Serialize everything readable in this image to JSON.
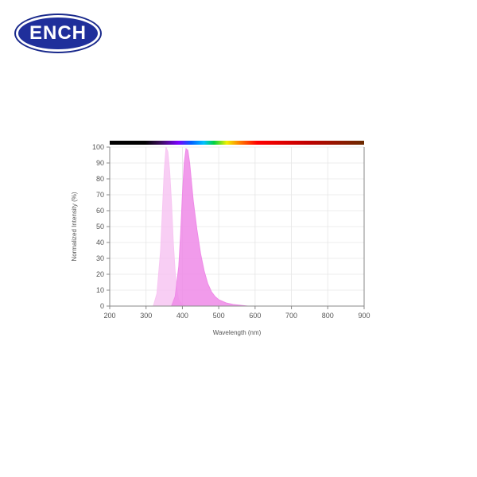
{
  "logo": {
    "text": "ENCH",
    "color": "#1f2f9b"
  },
  "chart_data": {
    "type": "area",
    "xlabel": "Wavelength (nm)",
    "ylabel": "Normalized Intensity (%)",
    "xlim": [
      200,
      900
    ],
    "ylim": [
      0,
      100
    ],
    "xticks": [
      200,
      300,
      400,
      500,
      600,
      700,
      800,
      900
    ],
    "yticks": [
      0,
      10,
      20,
      30,
      40,
      50,
      60,
      70,
      80,
      90,
      100
    ],
    "grid": true,
    "spectrum_bar": true,
    "series": [
      {
        "color": "#f7c6f2",
        "x": [
          320,
          330,
          340,
          345,
          350,
          355,
          360,
          365,
          370,
          375,
          380,
          385,
          390,
          400,
          410
        ],
        "y": [
          0,
          8,
          35,
          60,
          85,
          100,
          97,
          85,
          65,
          40,
          22,
          10,
          4,
          1,
          0
        ]
      },
      {
        "color": "#ee8ae7",
        "x": [
          370,
          380,
          390,
          395,
          400,
          405,
          410,
          415,
          420,
          425,
          430,
          440,
          450,
          460,
          470,
          480,
          490,
          500,
          520,
          540,
          560,
          580
        ],
        "y": [
          0,
          6,
          25,
          45,
          70,
          90,
          99,
          98,
          90,
          78,
          66,
          48,
          33,
          22,
          14,
          9,
          6,
          4,
          2,
          1,
          0.5,
          0
        ]
      }
    ]
  }
}
